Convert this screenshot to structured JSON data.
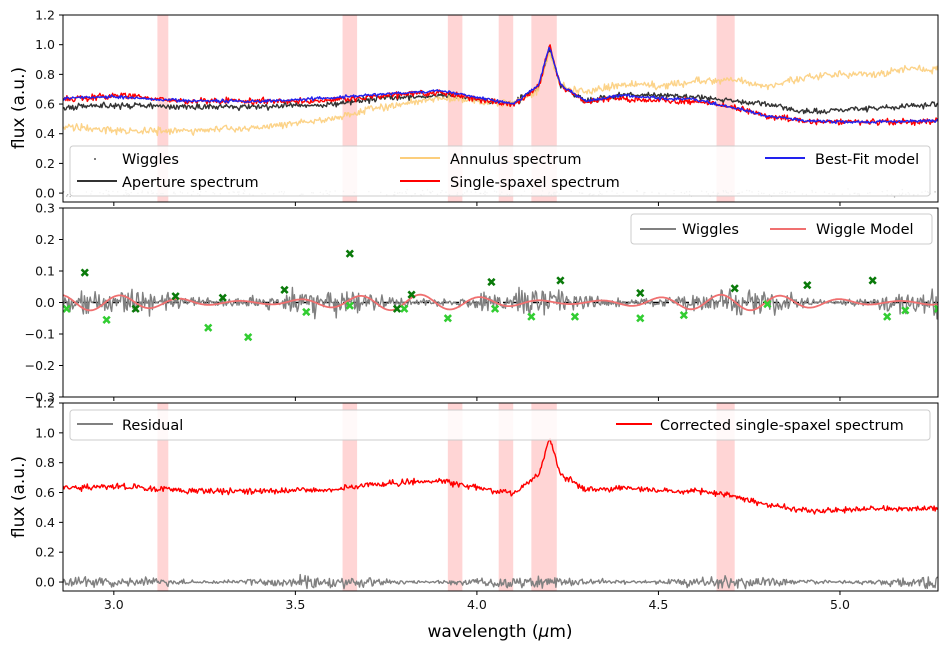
{
  "chart_data": [
    {
      "type": "line",
      "panel": "top",
      "ylabel": "flux (a.u.)",
      "xlim": [
        2.86,
        5.27
      ],
      "ylim": [
        -0.06,
        1.2
      ],
      "yticks": [
        "0.0",
        "0.2",
        "0.4",
        "0.6",
        "0.8",
        "1.0",
        "1.2"
      ],
      "ytick_values": [
        0.0,
        0.2,
        0.4,
        0.6,
        0.8,
        1.0,
        1.2
      ],
      "shaded_bands": [
        [
          3.12,
          3.15
        ],
        [
          3.63,
          3.67
        ],
        [
          3.92,
          3.96
        ],
        [
          4.06,
          4.1
        ],
        [
          4.15,
          4.22
        ],
        [
          4.66,
          4.71
        ]
      ],
      "series": [
        {
          "name": "Wiggles",
          "color": "#8a8a8a",
          "style": "points",
          "baseline": 0.0,
          "amplitude": 0.03
        },
        {
          "name": "Aperture spectrum",
          "color": "#333333",
          "x": [
            2.86,
            3.0,
            3.2,
            3.4,
            3.6,
            3.7,
            3.9,
            4.1,
            4.17,
            4.2,
            4.23,
            4.3,
            4.4,
            4.5,
            4.6,
            4.7,
            4.8,
            4.9,
            5.0,
            5.1,
            5.27
          ],
          "y": [
            0.58,
            0.59,
            0.58,
            0.58,
            0.6,
            0.63,
            0.66,
            0.6,
            0.72,
            0.98,
            0.72,
            0.62,
            0.66,
            0.66,
            0.65,
            0.62,
            0.6,
            0.55,
            0.56,
            0.57,
            0.6
          ]
        },
        {
          "name": "Annulus spectrum",
          "color": "#fcce7c",
          "x": [
            2.86,
            3.0,
            3.2,
            3.4,
            3.6,
            3.7,
            3.9,
            4.1,
            4.17,
            4.2,
            4.23,
            4.3,
            4.4,
            4.5,
            4.6,
            4.7,
            4.8,
            4.9,
            5.0,
            5.1,
            5.2,
            5.27
          ],
          "y": [
            0.45,
            0.42,
            0.42,
            0.44,
            0.5,
            0.56,
            0.64,
            0.6,
            0.7,
            0.95,
            0.72,
            0.68,
            0.74,
            0.72,
            0.75,
            0.76,
            0.72,
            0.78,
            0.8,
            0.8,
            0.84,
            0.83
          ]
        },
        {
          "name": "Single-spaxel spectrum",
          "color": "#ff0000",
          "x": [
            2.86,
            3.0,
            3.2,
            3.4,
            3.6,
            3.7,
            3.9,
            4.1,
            4.17,
            4.2,
            4.23,
            4.3,
            4.4,
            4.5,
            4.6,
            4.7,
            4.8,
            4.9,
            5.0,
            5.1,
            5.27
          ],
          "y": [
            0.63,
            0.66,
            0.62,
            0.62,
            0.62,
            0.65,
            0.68,
            0.59,
            0.72,
            0.99,
            0.72,
            0.62,
            0.64,
            0.62,
            0.62,
            0.58,
            0.52,
            0.48,
            0.48,
            0.48,
            0.48
          ]
        },
        {
          "name": "Best-Fit model",
          "color": "#2222ee",
          "x": [
            2.86,
            3.0,
            3.2,
            3.4,
            3.6,
            3.7,
            3.9,
            4.1,
            4.17,
            4.2,
            4.23,
            4.3,
            4.4,
            4.5,
            4.6,
            4.7,
            4.8,
            4.9,
            5.0,
            5.1,
            5.27
          ],
          "y": [
            0.64,
            0.65,
            0.62,
            0.62,
            0.64,
            0.66,
            0.69,
            0.6,
            0.73,
            0.99,
            0.73,
            0.62,
            0.66,
            0.64,
            0.63,
            0.58,
            0.52,
            0.49,
            0.48,
            0.48,
            0.49
          ]
        }
      ],
      "legend": {
        "placement": "lower",
        "entries": [
          "Wiggles",
          "Annulus spectrum",
          "Best-Fit model",
          "Aperture spectrum",
          "Single-spaxel spectrum"
        ]
      }
    },
    {
      "type": "line",
      "panel": "middle",
      "ylabel": "",
      "xlim": [
        2.86,
        5.27
      ],
      "ylim": [
        -0.3,
        0.3
      ],
      "yticks": [
        "−0.3",
        "−0.2",
        "−0.1",
        "0.0",
        "0.1",
        "0.2",
        "0.3"
      ],
      "ytick_values": [
        -0.3,
        -0.2,
        -0.1,
        0.0,
        0.1,
        0.2,
        0.3
      ],
      "zero_line": {
        "y": 0.0,
        "color": "#000000",
        "style": "dashed"
      },
      "series": [
        {
          "name": "Wiggles",
          "color": "#808080",
          "baseline": 0.0,
          "amplitude": 0.04
        },
        {
          "name": "Wiggle Model",
          "color": "#f07070",
          "baseline": 0.0,
          "amplitude": 0.025
        },
        {
          "name": "peaks",
          "color": "#0a7a0a",
          "marker": "x",
          "x": [
            2.92,
            3.06,
            3.17,
            3.3,
            3.47,
            3.82,
            4.04,
            4.23,
            4.45,
            4.71,
            4.91,
            5.09
          ],
          "y": [
            0.095,
            -0.02,
            0.02,
            0.015,
            0.04,
            0.025,
            0.065,
            0.07,
            0.03,
            0.045,
            0.055,
            0.07
          ]
        },
        {
          "name": "troughs",
          "color": "#32cd32",
          "marker": "x",
          "x": [
            2.87,
            2.98,
            3.26,
            3.37,
            3.53,
            3.65,
            3.8,
            3.92,
            4.05,
            4.15,
            4.27,
            4.45,
            4.57,
            4.8,
            5.13,
            5.18,
            5.27
          ],
          "y": [
            -0.02,
            -0.055,
            -0.08,
            -0.11,
            -0.03,
            -0.01,
            -0.02,
            -0.05,
            -0.02,
            -0.045,
            -0.045,
            -0.05,
            -0.04,
            -0.005,
            -0.045,
            -0.025,
            -0.02
          ]
        },
        {
          "name": "mid-markers",
          "color": "#0a7a0a",
          "marker": "x",
          "x": [
            3.65,
            3.78
          ],
          "y": [
            0.155,
            -0.02
          ]
        }
      ],
      "legend": {
        "placement": "top-right",
        "entries": [
          "Wiggles",
          "Wiggle Model"
        ]
      }
    },
    {
      "type": "line",
      "panel": "bottom",
      "ylabel": "flux (a.u.)",
      "xlabel": "wavelength (μm)",
      "xlim": [
        2.86,
        5.27
      ],
      "ylim": [
        -0.06,
        1.2
      ],
      "yticks": [
        "0.0",
        "0.2",
        "0.4",
        "0.6",
        "0.8",
        "1.0",
        "1.2"
      ],
      "ytick_values": [
        0.0,
        0.2,
        0.4,
        0.6,
        0.8,
        1.0,
        1.2
      ],
      "xticks": [
        "3.0",
        "3.5",
        "4.0",
        "4.5",
        "5.0"
      ],
      "xtick_values": [
        3.0,
        3.5,
        4.0,
        4.5,
        5.0
      ],
      "shaded_bands": [
        [
          3.12,
          3.15
        ],
        [
          3.63,
          3.67
        ],
        [
          3.92,
          3.96
        ],
        [
          4.06,
          4.1
        ],
        [
          4.15,
          4.22
        ],
        [
          4.66,
          4.71
        ]
      ],
      "series": [
        {
          "name": "Residual",
          "color": "#808080",
          "baseline": 0.0,
          "amplitude": 0.04
        },
        {
          "name": "Corrected single-spaxel spectrum",
          "color": "#ff0000",
          "x": [
            2.86,
            3.0,
            3.2,
            3.4,
            3.6,
            3.7,
            3.9,
            4.1,
            4.17,
            4.2,
            4.23,
            4.3,
            4.4,
            4.5,
            4.6,
            4.7,
            4.8,
            4.9,
            5.0,
            5.1,
            5.27
          ],
          "y": [
            0.63,
            0.64,
            0.61,
            0.61,
            0.62,
            0.65,
            0.68,
            0.59,
            0.72,
            0.97,
            0.72,
            0.62,
            0.63,
            0.61,
            0.61,
            0.58,
            0.52,
            0.48,
            0.48,
            0.49,
            0.49
          ]
        }
      ],
      "legend": {
        "placement": "top",
        "entries": [
          "Residual",
          "Corrected single-spaxel spectrum"
        ]
      }
    }
  ],
  "labels": {
    "top_ylabel": "flux (a.u.)",
    "bottom_ylabel": "flux (a.u.)",
    "xlabel_main": "wavelength (",
    "xlabel_mu": "μ",
    "xlabel_unit": "m)"
  },
  "legends": {
    "top": [
      "Wiggles",
      "Annulus spectrum",
      "Best-Fit model",
      "Aperture spectrum",
      "Single-spaxel spectrum"
    ],
    "middle": [
      "Wiggles",
      "Wiggle Model"
    ],
    "bottom": [
      "Residual",
      "Corrected single-spaxel spectrum"
    ]
  },
  "colors": {
    "band": "#ffb3b3",
    "wiggles": "#808080",
    "aperture": "#333333",
    "annulus": "#fcce7c",
    "spaxel": "#ff0000",
    "bestfit": "#2222ee",
    "wiggle_model": "#f07070",
    "peak_marker": "#0a7a0a",
    "trough_marker": "#32cd32"
  }
}
